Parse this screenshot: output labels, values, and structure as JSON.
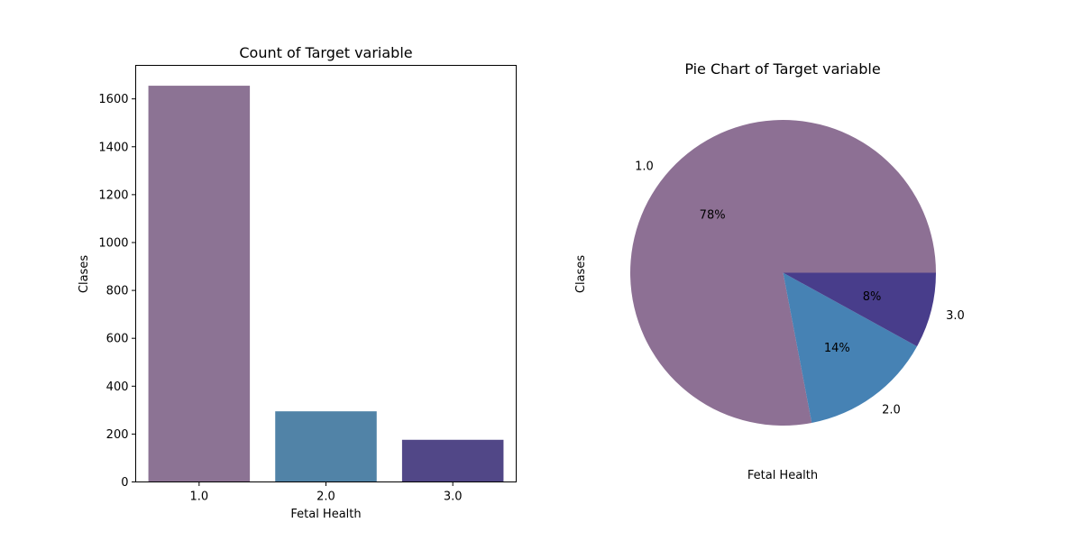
{
  "chart_data": [
    {
      "type": "bar",
      "title": "Count of Target variable",
      "xlabel": "Fetal Health",
      "ylabel": "Clases",
      "categories": [
        "1.0",
        "2.0",
        "3.0"
      ],
      "values": [
        1655,
        295,
        176
      ],
      "colors": [
        "#8c7394",
        "#5183a7",
        "#514787"
      ],
      "ylim": [
        0,
        1740
      ],
      "yticks": [
        0,
        200,
        400,
        600,
        800,
        1000,
        1200,
        1400,
        1600
      ],
      "grid": false
    },
    {
      "type": "pie",
      "title": "Pie Chart of Target variable",
      "xlabel": "Fetal Health",
      "ylabel": "Clases",
      "labels": [
        "1.0",
        "2.0",
        "3.0"
      ],
      "values": [
        78,
        14,
        8
      ],
      "pct_labels": [
        "78%",
        "14%",
        "8%"
      ],
      "colors": [
        "#8d7094",
        "#4682b4",
        "#483d8b"
      ]
    }
  ]
}
